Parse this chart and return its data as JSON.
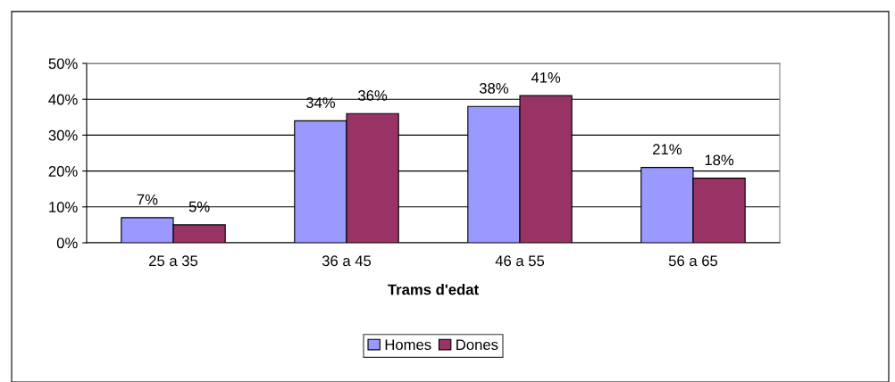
{
  "chart_data": {
    "type": "bar",
    "xlabel": "Trams d'edat",
    "categories": [
      "25 a 35",
      "36 a 45",
      "46 a 55",
      "56 a 65"
    ],
    "series": [
      {
        "name": "Homes",
        "color": "#9999ff",
        "values": [
          7,
          34,
          38,
          21
        ]
      },
      {
        "name": "Dones",
        "color": "#993366",
        "values": [
          5,
          36,
          41,
          18
        ]
      }
    ],
    "ylim": [
      0,
      50
    ],
    "yticks": [
      {
        "value": 0,
        "label": "0%"
      },
      {
        "value": 10,
        "label": "10%"
      },
      {
        "value": 20,
        "label": "20%"
      },
      {
        "value": 30,
        "label": "30%"
      },
      {
        "value": 40,
        "label": "40%"
      },
      {
        "value": 50,
        "label": "50%"
      }
    ],
    "value_labels": [
      [
        "7%",
        "34%",
        "38%",
        "21%"
      ],
      [
        "5%",
        "36%",
        "41%",
        "18%"
      ]
    ],
    "grid": "y",
    "legend": "bottom"
  }
}
